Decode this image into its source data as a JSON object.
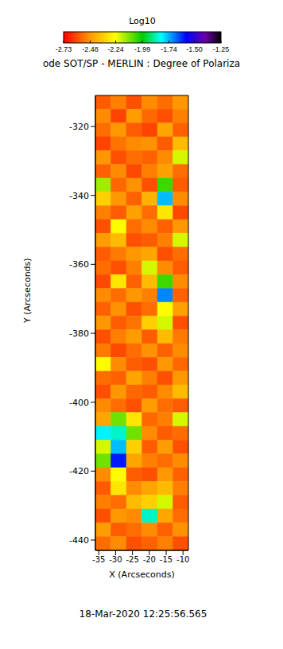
{
  "chart_data": {
    "type": "heatmap",
    "title": "ode SOT/SP - MERLIN : Degree of Polariza",
    "x_label": "X (Arcseconds)",
    "y_label": "Y (Arcseconds)",
    "xlim": [
      -36,
      -8.4
    ],
    "ylim": [
      -443,
      -311
    ],
    "xticks": [
      -35,
      -30,
      -25,
      -20,
      -15,
      -10
    ],
    "yticks": [
      -440,
      -420,
      -400,
      -380,
      -360,
      -340,
      -320
    ],
    "x_edges": [
      -36,
      -31.4,
      -26.8,
      -22.2,
      -17.6,
      -13,
      -8.4
    ],
    "y_edges": [
      -311,
      -315,
      -319,
      -323,
      -327,
      -331,
      -335,
      -339,
      -343,
      -347,
      -351,
      -355,
      -359,
      -363,
      -367,
      -371,
      -375,
      -379,
      -383,
      -387,
      -391,
      -395,
      -399,
      -403,
      -407,
      -411,
      -415,
      -419,
      -423,
      -427,
      -431,
      -435,
      -439,
      -443
    ],
    "cells": [
      [
        -2.58,
        -2.52,
        -2.6,
        -2.5,
        -2.55,
        -2.48
      ],
      [
        -2.5,
        -2.62,
        -2.47,
        -2.56,
        -2.6,
        -2.52
      ],
      [
        -2.55,
        -2.48,
        -2.58,
        -2.62,
        -2.45,
        -2.57
      ],
      [
        -2.62,
        -2.54,
        -2.5,
        -2.49,
        -2.58,
        -2.4
      ],
      [
        -2.48,
        -2.6,
        -2.55,
        -2.57,
        -2.5,
        -2.2
      ],
      [
        -2.57,
        -2.5,
        -2.61,
        -2.52,
        -2.46,
        -2.55
      ],
      [
        -2.15,
        -2.56,
        -2.49,
        -2.6,
        -2.05,
        -2.58
      ],
      [
        -2.35,
        -2.48,
        -2.57,
        -2.42,
        -1.75,
        -2.5
      ],
      [
        -2.52,
        -2.58,
        -2.46,
        -2.55,
        -2.3,
        -2.61
      ],
      [
        -2.6,
        -2.25,
        -2.55,
        -2.5,
        -2.57,
        -2.48
      ],
      [
        -2.47,
        -2.4,
        -2.6,
        -2.58,
        -2.52,
        -2.2
      ],
      [
        -2.58,
        -2.53,
        -2.48,
        -2.45,
        -2.6,
        -2.55
      ],
      [
        -2.55,
        -2.6,
        -2.52,
        -2.2,
        -2.5,
        -2.58
      ],
      [
        -2.61,
        -2.3,
        -2.57,
        -2.4,
        -2.05,
        -2.5
      ],
      [
        -2.5,
        -2.55,
        -2.48,
        -2.52,
        -1.7,
        -2.57
      ],
      [
        -2.57,
        -2.49,
        -2.6,
        -2.55,
        -2.25,
        -2.46
      ],
      [
        -2.48,
        -2.58,
        -2.54,
        -2.35,
        -2.2,
        -2.6
      ],
      [
        -2.6,
        -2.52,
        -2.47,
        -2.58,
        -2.4,
        -2.53
      ],
      [
        -2.53,
        -2.61,
        -2.55,
        -2.49,
        -2.57,
        -2.5
      ],
      [
        -2.25,
        -2.5,
        -2.58,
        -2.6,
        -2.48,
        -2.56
      ],
      [
        -2.55,
        -2.57,
        -2.45,
        -2.52,
        -2.6,
        -2.48
      ],
      [
        -2.6,
        -2.48,
        -2.56,
        -2.58,
        -2.5,
        -2.4
      ],
      [
        -2.5,
        -2.55,
        -2.6,
        -2.47,
        -2.55,
        -2.58
      ],
      [
        -2.45,
        -2.1,
        -2.3,
        -2.56,
        -2.52,
        -2.2
      ],
      [
        -1.8,
        -1.85,
        -2.1,
        -2.5,
        -2.58,
        -2.55
      ],
      [
        -2.2,
        -1.75,
        -2.35,
        -2.58,
        -2.47,
        -2.6
      ],
      [
        -2.1,
        -1.6,
        -2.45,
        -2.52,
        -2.55,
        -2.5
      ],
      [
        -2.5,
        -2.25,
        -2.58,
        -2.6,
        -2.48,
        -2.57
      ],
      [
        -2.58,
        -2.3,
        -2.5,
        -2.45,
        -2.4,
        -2.52
      ],
      [
        -2.52,
        -2.55,
        -2.4,
        -2.35,
        -2.2,
        -2.58
      ],
      [
        -2.6,
        -2.48,
        -2.5,
        -1.85,
        -2.45,
        -2.55
      ],
      [
        -2.47,
        -2.58,
        -2.55,
        -2.5,
        -2.57,
        -2.49
      ],
      [
        -2.55,
        -2.5,
        -2.6,
        -2.57,
        -2.52,
        -2.6
      ]
    ],
    "colorbar": {
      "label": "Log10",
      "range": [
        -2.73,
        -1.25
      ],
      "ticks": [
        -2.73,
        -2.48,
        -2.24,
        -1.99,
        -1.74,
        {
          "value": -1.5,
          "label": "-1.50"
        },
        -1.25
      ]
    },
    "annotation": "18-Mar-2020 12:25:56.565"
  }
}
